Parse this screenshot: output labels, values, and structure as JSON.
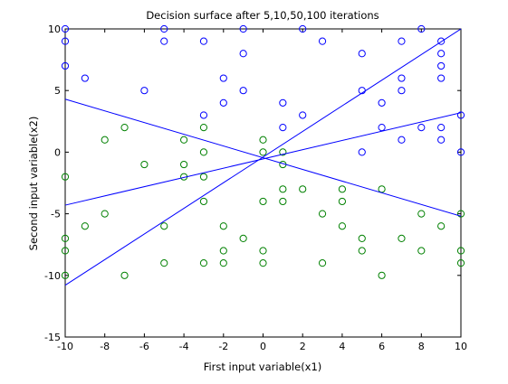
{
  "chart_data": {
    "type": "scatter",
    "title": "Decision surface after 5,10,50,100 iterations",
    "xlabel": "First input variable(x1)",
    "ylabel": "Second input variable(x2)",
    "xlim": [
      -10,
      10
    ],
    "ylim": [
      -15,
      10
    ],
    "xticks": [
      "-10",
      "-8",
      "-6",
      "-4",
      "-2",
      "0",
      "2",
      "4",
      "6",
      "8",
      "10"
    ],
    "yticks": [
      "-15",
      "-10",
      "-5",
      "0",
      "5",
      "10"
    ],
    "grid": false,
    "colors": {
      "class_a": "#0000ff",
      "class_b": "#008000",
      "lines": "#0000ff"
    },
    "series": [
      {
        "marker": "circle",
        "color": "#0000ff",
        "points": [
          [
            -10,
            10
          ],
          [
            -10,
            9
          ],
          [
            -10,
            7
          ],
          [
            -9,
            6
          ],
          [
            -6,
            5
          ],
          [
            -5,
            10
          ],
          [
            -5,
            9
          ],
          [
            -3,
            9
          ],
          [
            -3,
            3
          ],
          [
            -2,
            6
          ],
          [
            -2,
            4
          ],
          [
            -1,
            10
          ],
          [
            -1,
            8
          ],
          [
            -1,
            5
          ],
          [
            1,
            4
          ],
          [
            1,
            2
          ],
          [
            2,
            3
          ],
          [
            2,
            10
          ],
          [
            3,
            9
          ],
          [
            5,
            8
          ],
          [
            5,
            5
          ],
          [
            5,
            0
          ],
          [
            6,
            4
          ],
          [
            6,
            2
          ],
          [
            7,
            9
          ],
          [
            7,
            6
          ],
          [
            7,
            5
          ],
          [
            7,
            1
          ],
          [
            8,
            10
          ],
          [
            8,
            2
          ],
          [
            9,
            9
          ],
          [
            9,
            8
          ],
          [
            9,
            7
          ],
          [
            9,
            6
          ],
          [
            9,
            2
          ],
          [
            9,
            1
          ],
          [
            10,
            3
          ],
          [
            10,
            0
          ]
        ]
      },
      {
        "marker": "circle",
        "color": "#008000",
        "points": [
          [
            -10,
            -2
          ],
          [
            -10,
            -7
          ],
          [
            -10,
            -8
          ],
          [
            -10,
            -10
          ],
          [
            -9,
            -6
          ],
          [
            -8,
            1
          ],
          [
            -8,
            -5
          ],
          [
            -7,
            2
          ],
          [
            -7,
            -10
          ],
          [
            -6,
            -1
          ],
          [
            -5,
            -6
          ],
          [
            -5,
            -9
          ],
          [
            -4,
            1
          ],
          [
            -4,
            -1
          ],
          [
            -4,
            -2
          ],
          [
            -3,
            2
          ],
          [
            -3,
            0
          ],
          [
            -3,
            -2
          ],
          [
            -3,
            -4
          ],
          [
            -3,
            -9
          ],
          [
            -2,
            -6
          ],
          [
            -2,
            -8
          ],
          [
            -2,
            -9
          ],
          [
            -1,
            -7
          ],
          [
            0,
            1
          ],
          [
            0,
            0
          ],
          [
            0,
            -4
          ],
          [
            0,
            -8
          ],
          [
            0,
            -9
          ],
          [
            1,
            0
          ],
          [
            1,
            -1
          ],
          [
            1,
            -3
          ],
          [
            1,
            -4
          ],
          [
            2,
            -3
          ],
          [
            3,
            -5
          ],
          [
            3,
            -9
          ],
          [
            4,
            -3
          ],
          [
            4,
            -4
          ],
          [
            4,
            -6
          ],
          [
            5,
            -7
          ],
          [
            5,
            -8
          ],
          [
            6,
            -3
          ],
          [
            6,
            -10
          ],
          [
            7,
            -7
          ],
          [
            8,
            -5
          ],
          [
            8,
            -8
          ],
          [
            9,
            -6
          ],
          [
            10,
            -5
          ],
          [
            10,
            -8
          ],
          [
            10,
            -9
          ]
        ]
      }
    ],
    "lines": [
      {
        "x": [
          -10,
          10
        ],
        "y": [
          4.3,
          -5.2
        ]
      },
      {
        "x": [
          -10,
          10
        ],
        "y": [
          -4.3,
          3.2
        ]
      },
      {
        "x": [
          -10,
          10
        ],
        "y": [
          -10.8,
          10
        ]
      }
    ]
  }
}
